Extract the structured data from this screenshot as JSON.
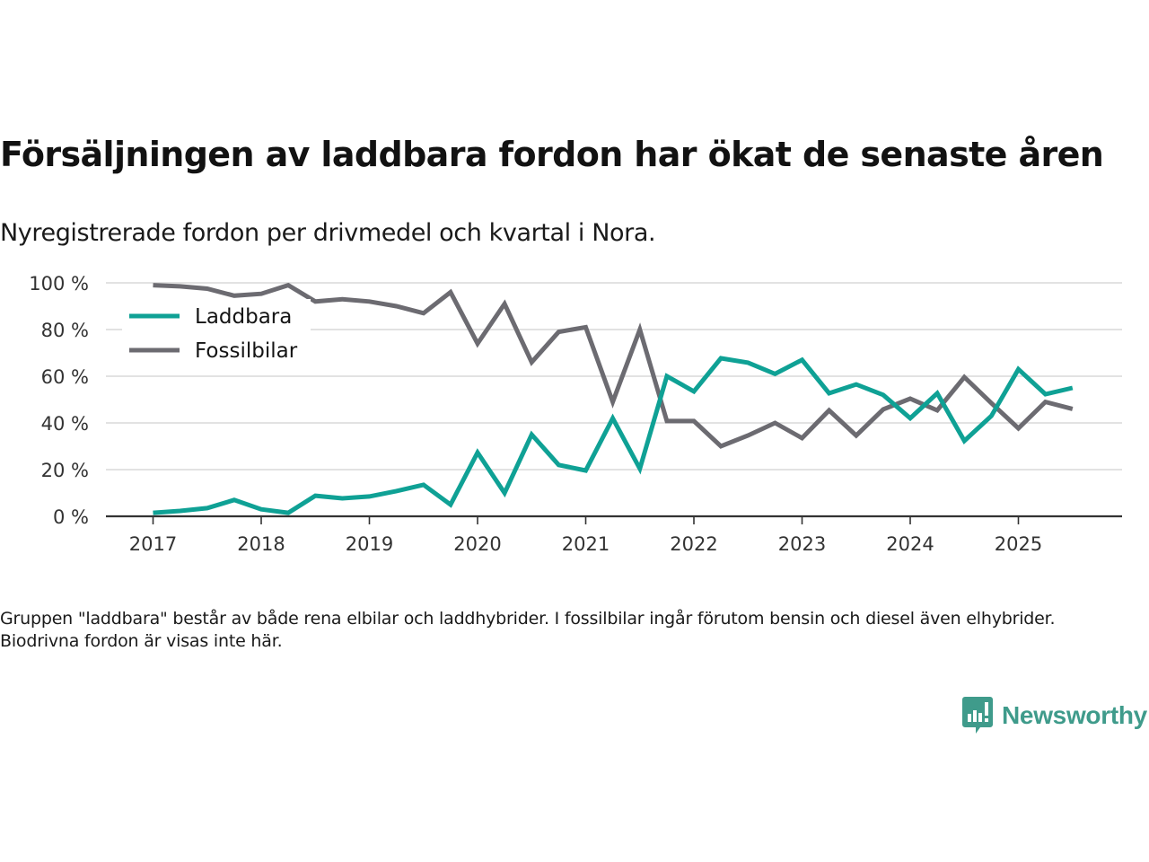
{
  "header": {
    "title": "Försäljningen av laddbara fordon har ökat de senaste åren",
    "subtitle": "Nyregistrerade fordon per drivmedel och kvartal i Nora."
  },
  "footnote": "Gruppen \"laddbara\" består av både rena elbilar och laddhybrider. I fossilbilar ingår förutom bensin och diesel även elhybrider. Biodrivna fordon är visas inte här.",
  "branding": {
    "logo_text": "Newsworthy",
    "logo_icon": "bar-chart-speech-bubble-icon",
    "color": "#3f9b8b"
  },
  "chart_data": {
    "type": "line",
    "title": "Försäljningen av laddbara fordon har ökat de senaste åren",
    "subtitle": "Nyregistrerade fordon per drivmedel och kvartal i Nora.",
    "xlabel": "",
    "ylabel": "",
    "x_unit": "quarter",
    "x": [
      "2017Q1",
      "2017Q2",
      "2017Q3",
      "2017Q4",
      "2018Q1",
      "2018Q2",
      "2018Q3",
      "2018Q4",
      "2019Q1",
      "2019Q2",
      "2019Q3",
      "2019Q4",
      "2020Q1",
      "2020Q2",
      "2020Q3",
      "2020Q4",
      "2021Q1",
      "2021Q2",
      "2021Q3",
      "2021Q4",
      "2022Q1",
      "2022Q2",
      "2022Q3",
      "2022Q4",
      "2023Q1",
      "2023Q2",
      "2023Q3",
      "2023Q4",
      "2024Q1",
      "2024Q2",
      "2024Q3",
      "2024Q4",
      "2025Q1",
      "2025Q2",
      "2025Q3"
    ],
    "x_start_year": 2017,
    "x_ticks": [
      "2017",
      "2018",
      "2019",
      "2020",
      "2021",
      "2022",
      "2023",
      "2024",
      "2025"
    ],
    "ylim": [
      0,
      100
    ],
    "y_ticks": [
      0,
      20,
      40,
      60,
      80,
      100
    ],
    "y_tick_labels": [
      "0 %",
      "20 %",
      "40 %",
      "60 %",
      "80 %",
      "100 %"
    ],
    "grid": true,
    "legend_position": "top-left",
    "series": [
      {
        "name": "Laddbara",
        "color": "#0fa195",
        "values": [
          1.5,
          2.3,
          3.5,
          7,
          3,
          1.5,
          8.8,
          7.7,
          8.5,
          10.8,
          13.5,
          5,
          27.3,
          10,
          35,
          22,
          19.6,
          42,
          20.4,
          60,
          53.5,
          67.7,
          65.8,
          61,
          67,
          52.7,
          56.5,
          52,
          42,
          52.7,
          32.3,
          43,
          63,
          52.3,
          55
        ]
      },
      {
        "name": "Fossilbilar",
        "color": "#6c6b71",
        "values": [
          99,
          98.5,
          97.5,
          94.5,
          95.3,
          99,
          92,
          93,
          92,
          90,
          87,
          96,
          74,
          91,
          66,
          79,
          81,
          49,
          80,
          40.8,
          40.8,
          30,
          34.6,
          40,
          33.5,
          45.4,
          34.6,
          45.8,
          50.4,
          45.4,
          59.6,
          48.5,
          37.7,
          49,
          46
        ]
      }
    ]
  }
}
